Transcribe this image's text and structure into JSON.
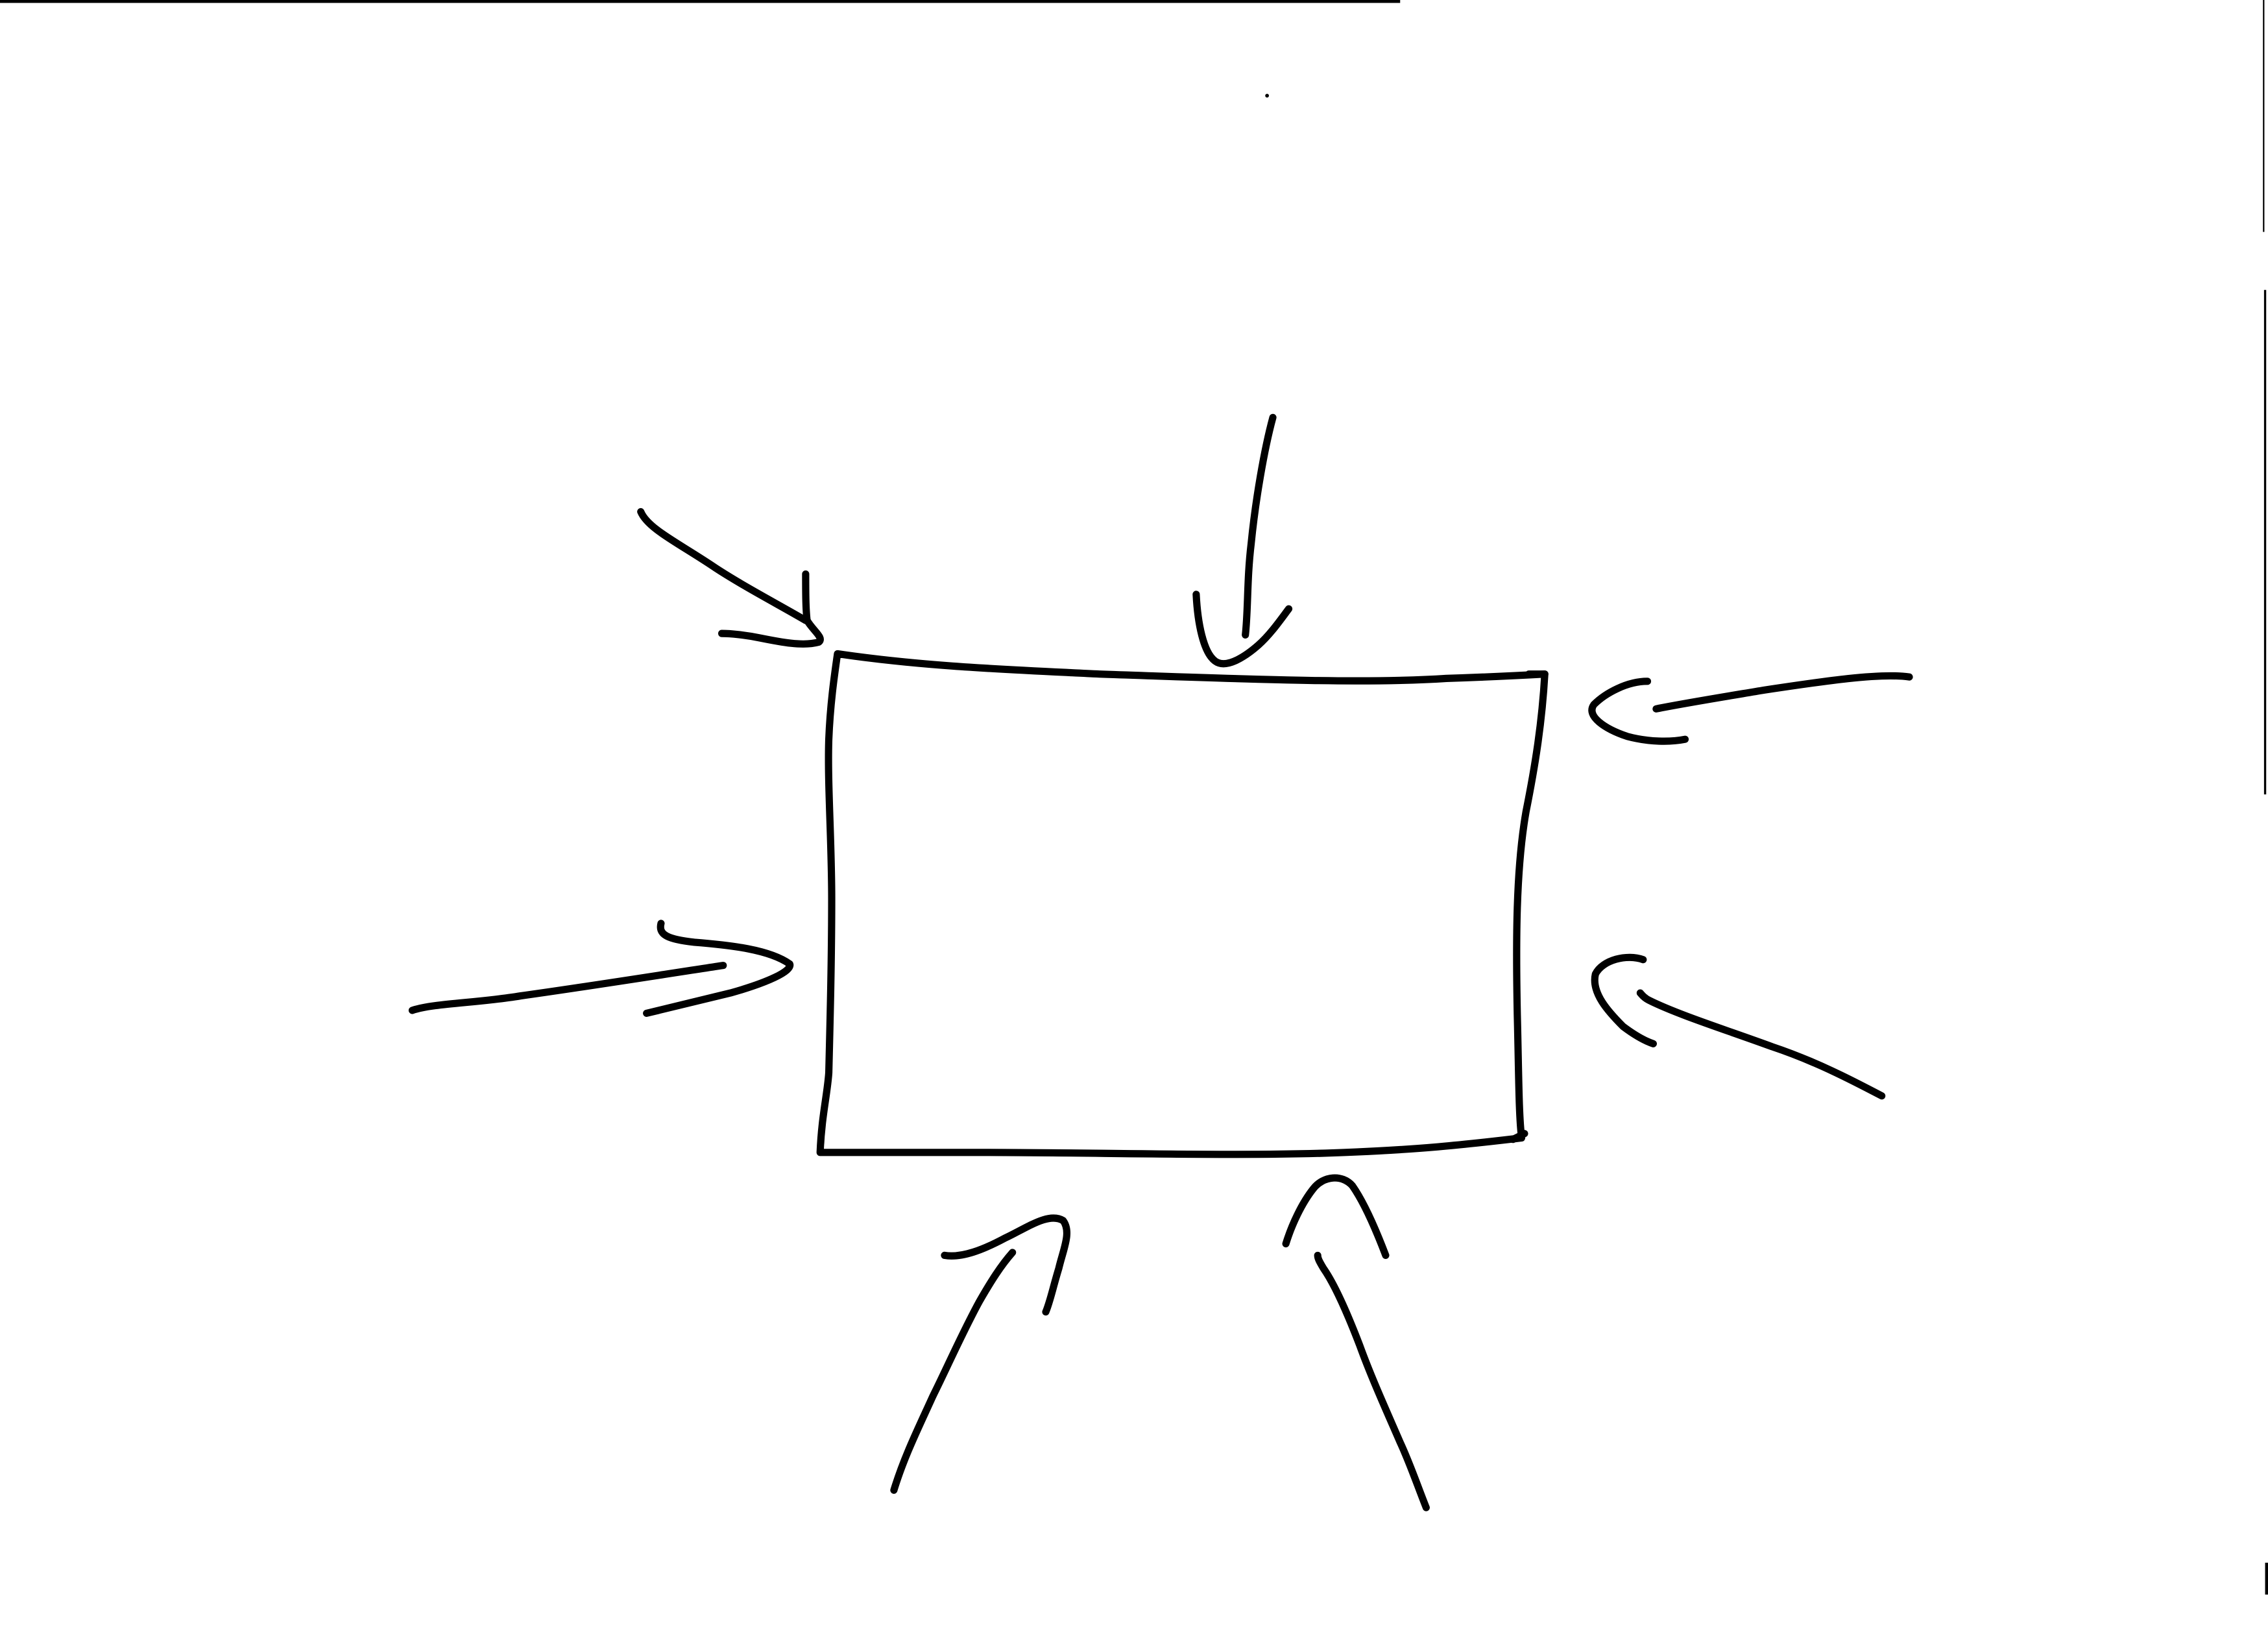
{
  "diagram": {
    "description_visible_text": "",
    "ink_color": "#000000",
    "paper_color": "#ffffff",
    "central_shape": {
      "kind": "rectangle",
      "label": ""
    },
    "arrows": [
      {
        "id": "arrow-top-left",
        "side": "top-left",
        "label": ""
      },
      {
        "id": "arrow-top",
        "side": "top",
        "label": ""
      },
      {
        "id": "arrow-right-upper",
        "side": "right-upper",
        "label": ""
      },
      {
        "id": "arrow-left",
        "side": "left",
        "label": ""
      },
      {
        "id": "arrow-right-lower",
        "side": "right-lower",
        "label": ""
      },
      {
        "id": "arrow-bottom-left",
        "side": "bottom-left",
        "label": ""
      },
      {
        "id": "arrow-bottom-right",
        "side": "bottom-right",
        "label": ""
      }
    ]
  }
}
